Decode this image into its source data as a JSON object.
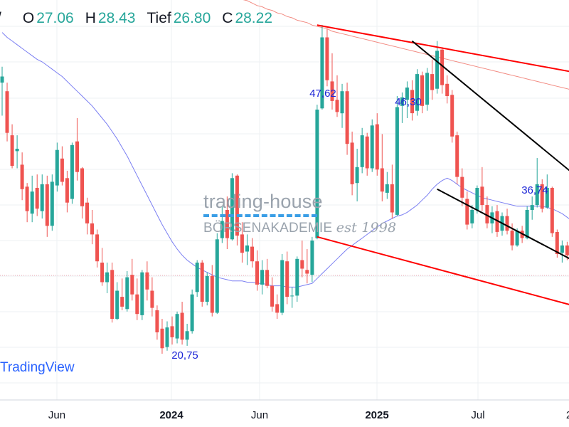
{
  "ohlc": {
    "prefix": "/",
    "open_label": "O",
    "open": "27.06",
    "high_label": "H",
    "high": "28.43",
    "low_label": "Tief",
    "low": "26.80",
    "close_label": "C",
    "close": "28.22",
    "value_color": "#26a69a"
  },
  "watermark": {
    "line1": "trading-house",
    "line2": "BÖRSENAKADEMIE",
    "script": "est 1998"
  },
  "brand": "TradingView",
  "chart_data": {
    "type": "candlestick",
    "time_axis_labels": [
      "Jun",
      "2024",
      "Jun",
      "2025",
      "Jul",
      "2"
    ],
    "y_range": [
      16.5,
      53.4
    ],
    "grid": true,
    "colors": {
      "up": "#26a69a",
      "down": "#ef5350",
      "ma_fast": "#7b7ff2",
      "ma_slow": "#f28b82"
    },
    "annotations": [
      {
        "text": "47,62",
        "value": 47.62
      },
      {
        "text": "46,30",
        "value": 46.3
      },
      {
        "text": "36,74",
        "value": 36.74
      },
      {
        "text": "20,75",
        "value": 20.75
      }
    ],
    "trendlines": [
      {
        "name": "upper-red",
        "color": "#ff0000",
        "from": [
          63,
          47.6
        ],
        "to": [
          115,
          43.7
        ]
      },
      {
        "name": "lower-red",
        "color": "#ff0000",
        "from": [
          63,
          30.3
        ],
        "to": [
          115,
          24.6
        ]
      },
      {
        "name": "upper-black",
        "color": "#000000",
        "from": [
          82,
          46.3
        ],
        "to": [
          115,
          35.2
        ]
      },
      {
        "name": "lower-black",
        "color": "#000000",
        "from": [
          87,
          34.2
        ],
        "to": [
          115,
          28.2
        ]
      }
    ],
    "candles": [
      [
        42.9,
        44.2,
        40.2,
        43.4
      ],
      [
        42.2,
        42.9,
        38.1,
        38.8
      ],
      [
        38.6,
        39.5,
        35.9,
        36.1
      ],
      [
        37.3,
        38.6,
        35.9,
        37.5
      ],
      [
        36.2,
        37.2,
        33.3,
        34.2
      ],
      [
        34.4,
        34.7,
        31.5,
        32.4
      ],
      [
        32.2,
        35.3,
        31.5,
        34.0
      ],
      [
        34.3,
        35.4,
        32.0,
        32.6
      ],
      [
        32.4,
        35.4,
        31.8,
        34.6
      ],
      [
        34.6,
        35.3,
        30.3,
        31.2
      ],
      [
        31.2,
        35.4,
        30.8,
        34.8
      ],
      [
        34.5,
        38.0,
        34.0,
        37.4
      ],
      [
        36.7,
        37.7,
        34.5,
        34.8
      ],
      [
        35.1,
        35.7,
        32.3,
        33.1
      ],
      [
        33.4,
        38.0,
        33.0,
        37.8
      ],
      [
        38.1,
        40.0,
        34.9,
        35.6
      ],
      [
        35.9,
        36.0,
        31.8,
        32.8
      ],
      [
        33.1,
        33.5,
        30.5,
        31.4
      ],
      [
        31.4,
        32.5,
        29.7,
        30.5
      ],
      [
        30.5,
        30.9,
        27.8,
        28.3
      ],
      [
        28.2,
        29.4,
        26.3,
        26.6
      ],
      [
        26.6,
        28.2,
        25.7,
        27.4
      ],
      [
        27.6,
        28.2,
        23.3,
        23.6
      ],
      [
        23.6,
        26.6,
        23.5,
        25.9
      ],
      [
        25.4,
        26.9,
        24.3,
        24.6
      ],
      [
        24.4,
        27.5,
        24.2,
        27.0
      ],
      [
        27.2,
        28.5,
        25.1,
        25.6
      ],
      [
        25.6,
        26.9,
        23.5,
        24.0
      ],
      [
        23.9,
        27.6,
        23.5,
        27.4
      ],
      [
        27.4,
        28.3,
        25.1,
        26.0
      ],
      [
        25.9,
        27.0,
        23.8,
        24.5
      ],
      [
        24.3,
        24.7,
        21.9,
        22.5
      ],
      [
        22.8,
        23.6,
        20.75,
        21.2
      ],
      [
        21.3,
        23.4,
        21.0,
        22.9
      ],
      [
        23.0,
        23.8,
        21.5,
        22.1
      ],
      [
        22.0,
        24.2,
        21.6,
        24.0
      ],
      [
        24.1,
        25.0,
        21.5,
        21.9
      ],
      [
        21.9,
        23.2,
        21.4,
        22.6
      ],
      [
        22.6,
        26.0,
        22.4,
        25.6
      ],
      [
        25.8,
        28.4,
        25.4,
        28.2
      ],
      [
        28.2,
        28.4,
        24.6,
        25.0
      ],
      [
        25.0,
        27.4,
        24.7,
        27.1
      ],
      [
        27.1,
        28.0,
        23.8,
        24.1
      ],
      [
        24.1,
        30.6,
        24.0,
        30.1
      ],
      [
        30.2,
        32.8,
        29.8,
        31.6
      ],
      [
        32.5,
        33.6,
        29.3,
        30.2
      ],
      [
        30.1,
        35.5,
        30.0,
        35.1
      ],
      [
        35.3,
        35.4,
        29.6,
        30.4
      ],
      [
        30.5,
        31.5,
        28.2,
        29.0
      ],
      [
        29.1,
        30.5,
        28.0,
        29.6
      ],
      [
        29.5,
        30.2,
        27.8,
        28.3
      ],
      [
        28.3,
        29.2,
        25.9,
        26.4
      ],
      [
        26.4,
        28.4,
        25.6,
        27.6
      ],
      [
        27.6,
        28.5,
        26.1,
        26.3
      ],
      [
        26.3,
        27.0,
        24.2,
        24.6
      ],
      [
        24.8,
        25.6,
        23.6,
        24.1
      ],
      [
        24.1,
        28.9,
        23.9,
        28.4
      ],
      [
        28.3,
        29.1,
        24.8,
        25.4
      ],
      [
        25.5,
        26.2,
        24.5,
        25.5
      ],
      [
        25.5,
        28.7,
        25.0,
        28.5
      ],
      [
        28.4,
        30.0,
        27.0,
        27.7
      ],
      [
        27.6,
        29.3,
        26.5,
        27.3
      ],
      [
        27.2,
        30.3,
        26.6,
        30.0
      ],
      [
        30.2,
        41.1,
        30.1,
        40.7
      ],
      [
        40.8,
        47.62,
        40.7,
        46.6
      ],
      [
        46.6,
        47.3,
        42.6,
        43.1
      ],
      [
        43.0,
        45.3,
        40.7,
        41.4
      ],
      [
        41.5,
        43.5,
        40.1,
        40.5
      ],
      [
        40.4,
        42.8,
        39.2,
        42.2
      ],
      [
        42.2,
        42.9,
        37.0,
        37.9
      ],
      [
        38.0,
        38.9,
        33.7,
        34.6
      ],
      [
        34.7,
        37.5,
        33.2,
        36.0
      ],
      [
        36.0,
        39.2,
        35.5,
        38.6
      ],
      [
        38.5,
        38.8,
        35.3,
        35.9
      ],
      [
        35.9,
        39.9,
        35.6,
        39.4
      ],
      [
        39.5,
        40.4,
        35.3,
        35.8
      ],
      [
        35.9,
        38.7,
        33.2,
        34.0
      ],
      [
        33.9,
        35.6,
        33.4,
        34.6
      ],
      [
        34.6,
        36.2,
        31.8,
        32.3
      ],
      [
        32.1,
        41.8,
        32.0,
        40.9
      ],
      [
        41.0,
        42.1,
        39.6,
        41.7
      ],
      [
        41.5,
        43.0,
        40.0,
        42.5
      ],
      [
        42.3,
        43.1,
        39.8,
        40.4
      ],
      [
        40.6,
        44.0,
        40.2,
        43.6
      ],
      [
        43.5,
        43.8,
        40.4,
        41.0
      ],
      [
        41.1,
        44.1,
        40.6,
        43.7
      ],
      [
        43.6,
        44.8,
        41.5,
        42.3
      ],
      [
        42.4,
        46.3,
        42.0,
        45.5
      ],
      [
        45.6,
        45.8,
        42.0,
        42.7
      ],
      [
        42.8,
        43.5,
        41.2,
        41.8
      ],
      [
        41.9,
        42.3,
        38.0,
        38.5
      ],
      [
        38.6,
        38.9,
        34.6,
        35.2
      ],
      [
        35.2,
        35.9,
        32.8,
        33.5
      ],
      [
        33.4,
        34.0,
        30.9,
        31.3
      ],
      [
        31.4,
        32.9,
        31.0,
        32.5
      ],
      [
        32.5,
        34.5,
        32.2,
        34.3
      ],
      [
        34.4,
        36.0,
        32.4,
        32.9
      ],
      [
        32.9,
        33.6,
        31.0,
        31.4
      ],
      [
        31.4,
        32.8,
        30.6,
        32.3
      ],
      [
        32.4,
        32.9,
        30.3,
        30.7
      ],
      [
        30.8,
        32.3,
        30.4,
        32.0
      ],
      [
        32.0,
        32.6,
        30.5,
        30.8
      ],
      [
        30.8,
        31.4,
        29.2,
        29.6
      ],
      [
        29.6,
        31.0,
        29.5,
        30.8
      ],
      [
        30.8,
        31.2,
        29.8,
        30.2
      ],
      [
        30.2,
        32.8,
        30.1,
        32.5
      ],
      [
        32.5,
        33.6,
        31.7,
        32.9
      ],
      [
        32.9,
        36.74,
        32.7,
        34.6
      ],
      [
        34.6,
        35.0,
        32.3,
        32.6
      ],
      [
        32.7,
        35.4,
        32.6,
        34.3
      ],
      [
        34.3,
        34.4,
        30.3,
        30.6
      ],
      [
        30.7,
        30.9,
        28.6,
        28.9
      ],
      [
        29.0,
        30.0,
        28.2,
        29.6
      ],
      [
        29.6,
        29.9,
        28.4,
        28.8
      ],
      [
        28.8,
        29.5,
        28.3,
        29.3
      ],
      [
        27.06,
        28.43,
        26.8,
        28.22
      ]
    ],
    "ma_fast_values": [
      47.0,
      46.6,
      46.3,
      46.0,
      45.7,
      45.4,
      45.1,
      44.8,
      44.6,
      44.3,
      44.0,
      43.7,
      43.4,
      43.0,
      42.6,
      42.2,
      41.8,
      41.4,
      41.0,
      40.5,
      40.0,
      39.5,
      38.9,
      38.3,
      37.6,
      36.9,
      36.1,
      35.3,
      34.5,
      33.7,
      32.9,
      32.1,
      31.3,
      30.6,
      29.9,
      29.3,
      28.8,
      28.4,
      28.1,
      27.8,
      27.6,
      27.4,
      27.2,
      27.0,
      26.9,
      26.8,
      26.7,
      26.7,
      26.7,
      26.6,
      26.6,
      26.5,
      26.5,
      26.4,
      26.3,
      26.3,
      26.3,
      26.2,
      26.2,
      26.2,
      26.3,
      26.4,
      26.5,
      26.9,
      27.3,
      27.7,
      28.1,
      28.5,
      28.9,
      29.3,
      29.6,
      29.9,
      30.2,
      30.5,
      30.8,
      31.1,
      31.4,
      31.6,
      31.8,
      32.0,
      32.1,
      32.3,
      32.6,
      32.9,
      33.3,
      33.7,
      34.2,
      34.6,
      34.9,
      35.1,
      34.9,
      34.6,
      34.3,
      34.1,
      33.9,
      33.7,
      33.5,
      33.4,
      33.3,
      33.2,
      33.1,
      33.0,
      32.9,
      32.8,
      32.8,
      32.8,
      32.8,
      32.8,
      32.8,
      32.7,
      32.6,
      32.4,
      32.2,
      31.9,
      31.6,
      31.3
    ],
    "ma_slow_values": [
      59.0,
      58.8,
      58.6,
      58.4,
      58.2,
      58.0,
      57.8,
      57.6,
      57.4,
      57.2,
      57.0,
      56.8,
      56.6,
      56.4,
      56.2,
      56.0,
      55.8,
      55.6,
      55.4,
      55.2,
      55.0,
      54.8,
      54.6,
      54.4,
      54.2,
      54.0,
      53.8,
      53.6,
      53.4,
      53.2,
      53.0,
      52.8,
      52.6,
      52.4,
      52.2,
      52.0,
      51.8,
      51.6,
      51.5,
      51.3,
      51.1,
      50.9,
      50.7,
      50.6,
      50.4,
      50.2,
      50.1,
      49.9,
      49.7,
      49.6,
      49.4,
      49.2,
      49.1,
      48.9,
      48.8,
      48.6,
      48.5,
      48.3,
      48.2,
      48.0,
      47.9,
      47.8,
      47.6,
      47.5,
      47.4,
      47.3,
      47.1,
      47.0,
      46.9,
      46.8,
      46.7,
      46.6,
      46.5,
      46.4,
      46.3,
      46.2,
      46.1,
      46.0,
      45.9,
      45.8,
      45.7,
      45.6,
      45.5,
      45.4,
      45.3,
      45.2,
      45.1,
      45.0,
      44.9,
      44.8,
      44.7,
      44.6,
      44.5,
      44.4,
      44.3,
      44.2,
      44.1,
      44.0,
      43.9,
      43.8,
      43.7,
      43.6,
      43.5,
      43.4,
      43.3,
      43.2,
      43.1,
      43.0,
      42.9,
      42.8,
      42.7,
      42.6,
      42.5,
      42.4,
      42.3,
      42.2
    ]
  }
}
